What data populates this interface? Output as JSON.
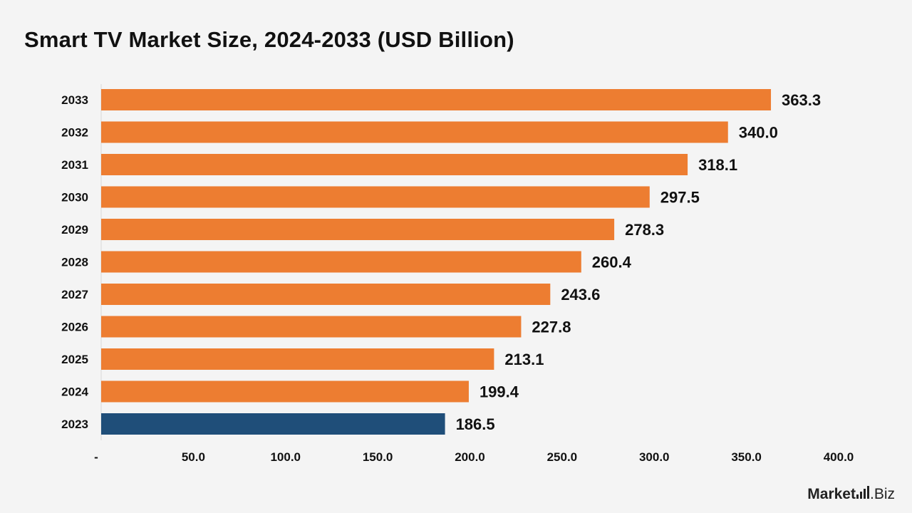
{
  "title": "Smart TV Market Size, 2024-2033 (USD Billion)",
  "logo": {
    "text": "Market",
    "suffix": ".Biz"
  },
  "colors": {
    "forecast": "#ed7d31",
    "base": "#1f4e79",
    "background": "#f4f4f4",
    "text": "#111111"
  },
  "chart_data": {
    "type": "bar",
    "orientation": "horizontal",
    "title": "Smart TV Market Size, 2024-2033 (USD Billion)",
    "categories": [
      "2033",
      "2032",
      "2031",
      "2030",
      "2029",
      "2028",
      "2027",
      "2026",
      "2025",
      "2024",
      "2023"
    ],
    "values": [
      363.3,
      340.0,
      318.1,
      297.5,
      278.3,
      260.4,
      243.6,
      227.8,
      213.1,
      199.4,
      186.5
    ],
    "value_labels": [
      "363.3",
      "340.0",
      "318.1",
      "297.5",
      "278.3",
      "260.4",
      "243.6",
      "227.8",
      "213.1",
      "199.4",
      "186.5"
    ],
    "bar_colors": [
      "#ed7d31",
      "#ed7d31",
      "#ed7d31",
      "#ed7d31",
      "#ed7d31",
      "#ed7d31",
      "#ed7d31",
      "#ed7d31",
      "#ed7d31",
      "#ed7d31",
      "#1f4e79"
    ],
    "x_ticks": [
      0,
      50,
      100,
      150,
      200,
      250,
      300,
      350,
      400
    ],
    "x_tick_labels": [
      "-",
      "50.0",
      "100.0",
      "150.0",
      "200.0",
      "250.0",
      "300.0",
      "350.0",
      "400.0"
    ],
    "xlim": [
      0,
      400
    ],
    "grid": false,
    "legend": "none"
  }
}
